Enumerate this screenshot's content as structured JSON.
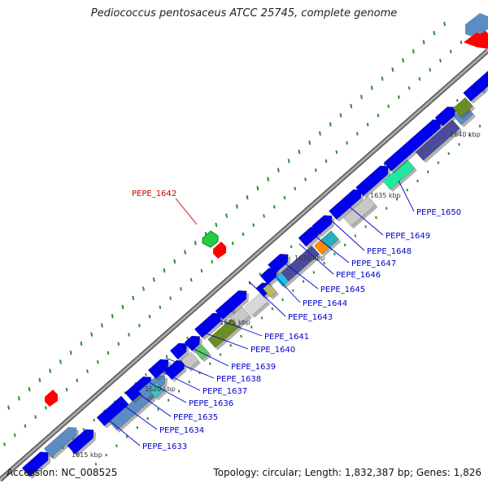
{
  "title": "Pediococcus pentosaceus ATCC 25745, complete genome",
  "footer": {
    "accession": "Accession: NC_008525",
    "summary": "Topology: circular; Length: 1,832,387 bp; Genes: 1,826"
  },
  "colors": {
    "cds_forward": "#0000ee",
    "cds_steel": "#5b8dc4",
    "highlight_label": "#cc0000",
    "gene_label": "#0000cc",
    "backbone": "#808080",
    "tick": "#2e8b2e"
  },
  "kbp_labels": [
    "1615 kbp",
    "1620 kbp",
    "1625 kbp",
    "1630 kbp",
    "1635 kbp",
    "1640 kbp"
  ],
  "highlight_gene": "PEPE_1642",
  "gene_labels": [
    "PEPE_1633",
    "PEPE_1634",
    "PEPE_1635",
    "PEPE_1636",
    "PEPE_1637",
    "PEPE_1638",
    "PEPE_1639",
    "PEPE_1640",
    "PEPE_1641",
    "PEPE_1643",
    "PEPE_1644",
    "PEPE_1645",
    "PEPE_1646",
    "PEPE_1647",
    "PEPE_1648",
    "PEPE_1649",
    "PEPE_1650"
  ]
}
